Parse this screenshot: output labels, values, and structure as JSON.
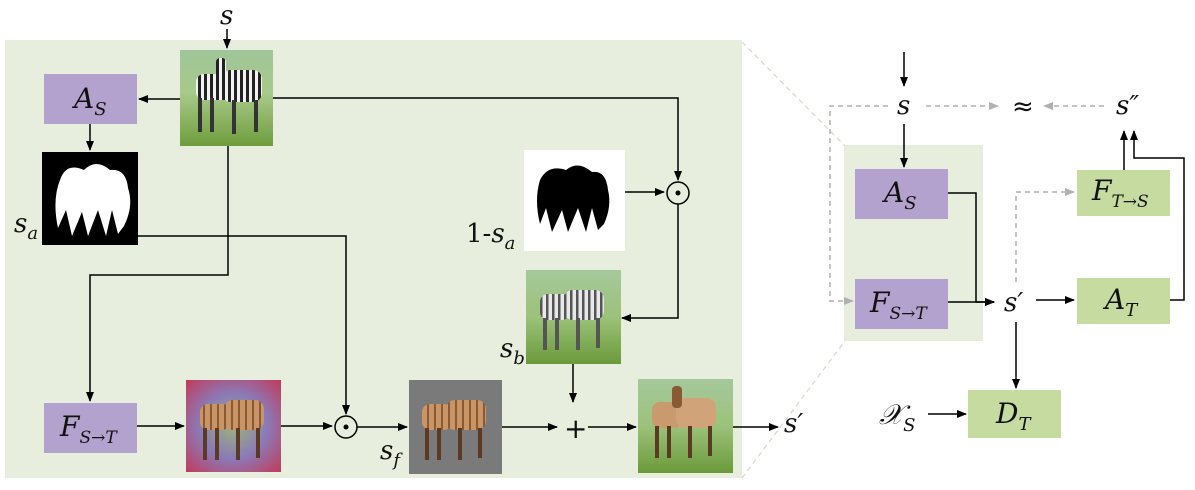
{
  "colors": {
    "panel_bg": "#e8eedd",
    "purple_box": "#b3a2cd",
    "green_box": "#c6dba0",
    "arrow": "#000000",
    "dashed_arrow": "#b0b0b0"
  },
  "left_panel": {
    "input_label": "s",
    "a_s_box": "A",
    "a_s_sub": "S",
    "f_st_box": "F",
    "f_st_sub": "S→T",
    "sa_label": "s",
    "sa_sub": "a",
    "one_minus_prefix": "1-",
    "one_minus_label": "s",
    "one_minus_sub": "a",
    "sb_label": "s",
    "sb_sub": "b",
    "sf_label": "s",
    "sf_sub": "f",
    "output_label": "s′",
    "odot_symbol": "⊙",
    "plus_symbol": "+",
    "images": {
      "input": "zebra-photo-icon",
      "mask": "attention-mask-icon",
      "inverse_mask": "inverse-mask-icon",
      "background": "zebra-background-icon",
      "translated": "translated-horse-icon",
      "foreground": "foreground-horse-icon",
      "output": "output-horse-icon"
    }
  },
  "right_panel": {
    "input_label": "s",
    "approx_symbol": "≈",
    "recon_label": "s″",
    "a_s_box": "A",
    "a_s_sub": "S",
    "f_st_box": "F",
    "f_st_sub": "S→T",
    "s_prime_label": "s′",
    "a_t_box": "A",
    "a_t_sub": "T",
    "f_ts_box": "F",
    "f_ts_sub": "T→S",
    "xs_label": "𝒳",
    "xs_sub": "S",
    "d_t_box": "D",
    "d_t_sub": "T"
  }
}
